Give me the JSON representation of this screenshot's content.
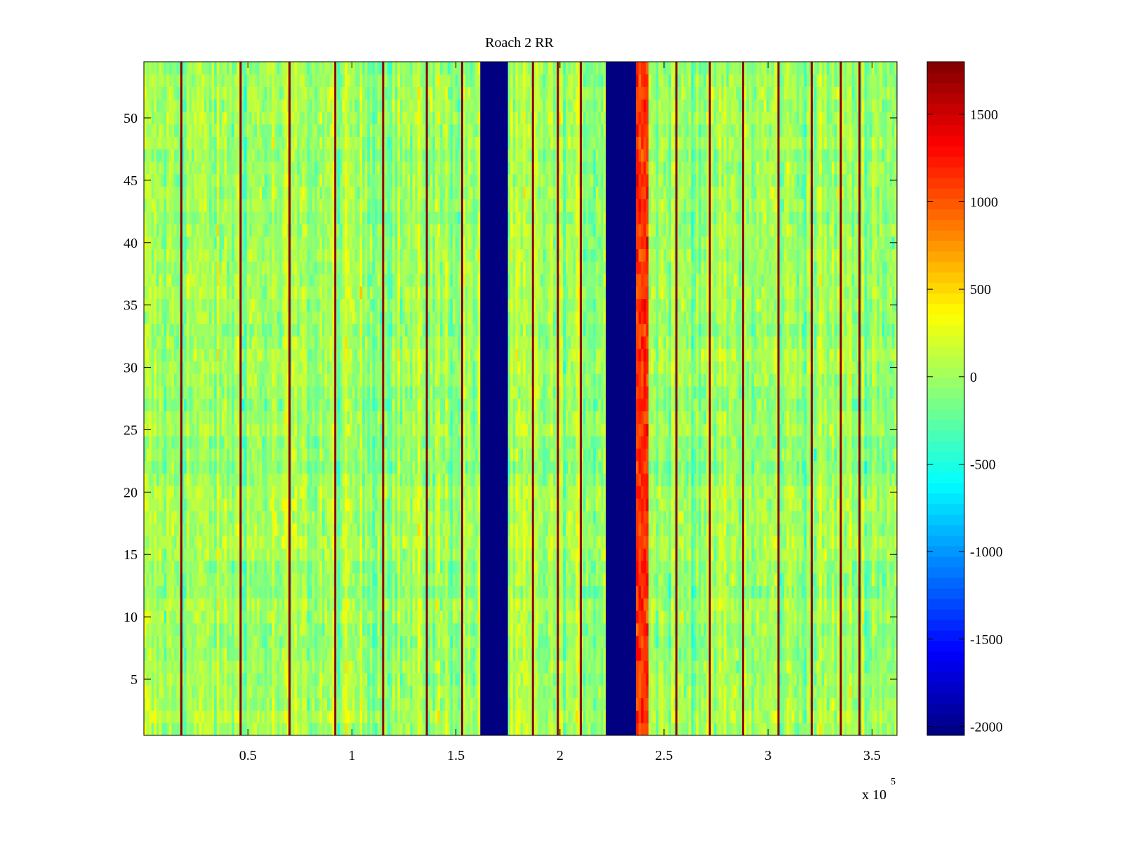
{
  "chart_data": {
    "type": "heatmap",
    "title": "Roach 2 RR",
    "xlabel": "",
    "ylabel": "",
    "x_exponent_base": "x 10",
    "x_exponent_power": "5",
    "xlim": [
      0,
      3.62
    ],
    "ylim": [
      0.5,
      54.5
    ],
    "x_ticks": [
      0.5,
      1,
      1.5,
      2,
      2.5,
      3,
      3.5
    ],
    "x_tick_labels": [
      "0.5",
      "1",
      "1.5",
      "2",
      "2.5",
      "3",
      "3.5"
    ],
    "y_ticks": [
      5,
      10,
      15,
      20,
      25,
      30,
      35,
      40,
      45,
      50
    ],
    "y_tick_labels": [
      "5",
      "10",
      "15",
      "20",
      "25",
      "30",
      "35",
      "40",
      "45",
      "50"
    ],
    "rows": 54,
    "clim": [
      -2050,
      1800
    ],
    "colorbar_ticks": [
      1500,
      1000,
      500,
      0,
      -500,
      -1000,
      -1500,
      -2000
    ],
    "colorbar_tick_labels": [
      "1500",
      "1000",
      "500",
      "0",
      "-500",
      "-1000",
      "-1500",
      "-2000"
    ],
    "colormap": "jet",
    "baseline_value": 0,
    "masked_bands": [
      {
        "x_start": 1.62,
        "x_end": 1.75,
        "value": -2050
      },
      {
        "x_start": 2.22,
        "x_end": 2.36,
        "value": -2050
      }
    ],
    "warm_bands": [
      {
        "x_start": 2.36,
        "x_end": 2.43,
        "value": 1150
      }
    ],
    "hot_channel_lines_x": [
      0.18,
      0.465,
      0.7,
      0.92,
      1.15,
      1.36,
      1.53,
      1.87,
      1.99,
      2.1,
      2.56,
      2.72,
      2.88,
      3.05,
      3.21,
      3.35,
      3.44
    ],
    "hot_line_value": 1750,
    "noise_std": 260
  },
  "colors": {
    "axis": "#000000",
    "background": "#ffffff"
  }
}
